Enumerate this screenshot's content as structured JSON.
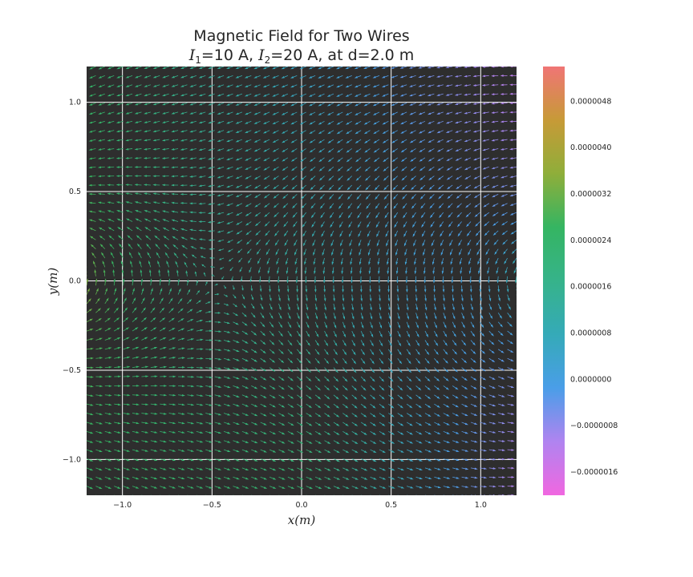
{
  "chart_data": {
    "type": "quiver",
    "title": "Magnetic Field for Two Wires",
    "subtitle_parts": [
      "I",
      "1",
      "=10 A, ",
      "I",
      "2",
      "=20 A, at d=2.0 m"
    ],
    "xlabel": "x(m)",
    "ylabel": "y(m)",
    "xlim": [
      -1.2,
      1.2
    ],
    "ylim": [
      -1.2,
      1.2
    ],
    "x_ticks": [
      -1.0,
      -0.5,
      0.0,
      0.5,
      1.0
    ],
    "x_tick_labels": [
      "−1.0",
      "−0.5",
      "0.0",
      "0.5",
      "1.0"
    ],
    "y_ticks": [
      -1.0,
      -0.5,
      0.0,
      0.5,
      1.0
    ],
    "y_tick_labels": [
      "−1.0",
      "−0.5",
      "0.0",
      "0.5",
      "1.0"
    ],
    "grid": true,
    "wires": {
      "I1_A": 10,
      "I2_A": 20,
      "d_m": 2.0
    },
    "grid_points": 48,
    "colorbar": {
      "min": -2e-06,
      "max": 5.4e-06,
      "ticks": [
        -1.6e-06,
        -8e-07,
        0.0,
        8e-07,
        1.6e-06,
        2.4e-06,
        3.2e-06,
        4e-06,
        4.8e-06
      ],
      "tick_labels": [
        "−0.0000016",
        "−0.0000008",
        "0.0000000",
        "0.0000008",
        "0.0000016",
        "0.0000024",
        "0.0000032",
        "0.0000040",
        "0.0000048"
      ],
      "colormap": [
        "#f067e0",
        "#b084f0",
        "#4a9ee8",
        "#35aab8",
        "#36b38a",
        "#35b562",
        "#8fae3a",
        "#c79a37",
        "#f07575"
      ]
    },
    "colors": {
      "background": "#2e2e2e",
      "grid": "#ffffff"
    }
  }
}
